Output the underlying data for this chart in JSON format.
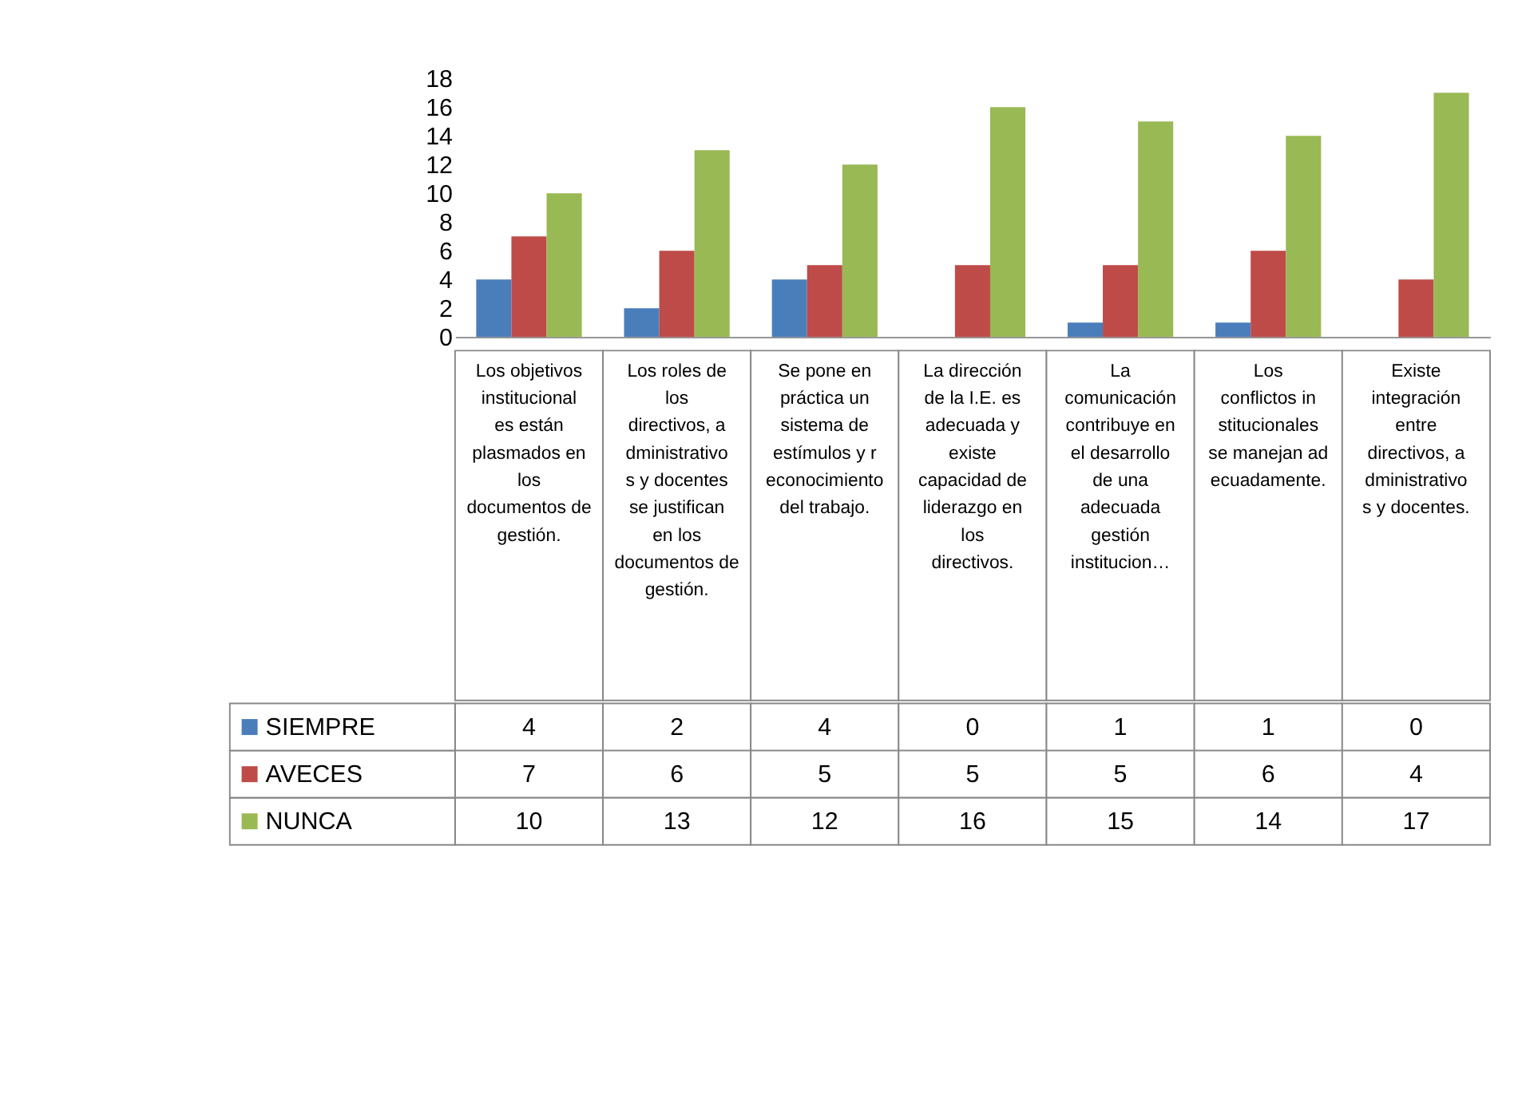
{
  "chart_data": {
    "type": "bar",
    "categories": [
      "Los objetivos institucionales están plasmados en los documentos de gestión.",
      "Los roles de los directivos, administrativos y docentes se justifican en los documentos de gestión.",
      "Se pone en práctica un sistema de estímulos y reconocimiento del trabajo.",
      "La dirección de la I.E. es adecuada y existe capacidad de liderazgo en los directivos.",
      "La comunicación contribuye en el desarrollo de una adecuada gestión institucion…",
      "Los conflictos institucionales se manejan adecuadamente.",
      "Existe integración entre directivos, administrativos y docentes."
    ],
    "series": [
      {
        "name": "SIEMPRE",
        "color": "#4a7ebb",
        "values": [
          4,
          2,
          4,
          0,
          1,
          1,
          0
        ]
      },
      {
        "name": "AVECES",
        "color": "#be4b48",
        "values": [
          7,
          6,
          5,
          5,
          5,
          6,
          4
        ]
      },
      {
        "name": "NUNCA",
        "color": "#98b954",
        "values": [
          10,
          13,
          12,
          16,
          15,
          14,
          17
        ]
      }
    ],
    "ylim": [
      0,
      18
    ],
    "yticks": [
      0,
      2,
      4,
      6,
      8,
      10,
      12,
      14,
      16,
      18
    ],
    "grid": false,
    "legend": "bottom",
    "data_labels": true
  }
}
